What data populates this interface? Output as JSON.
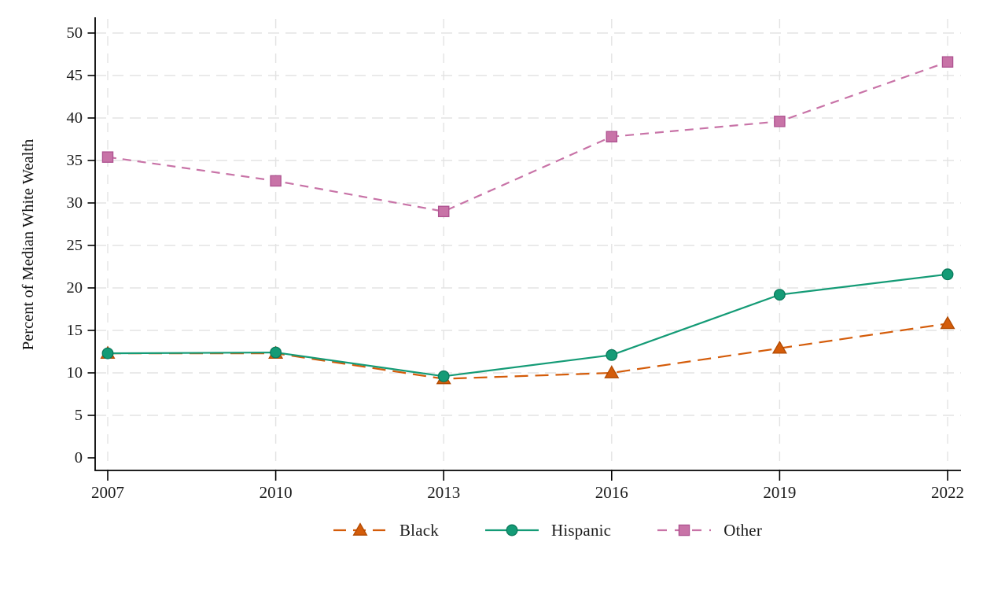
{
  "chart_data": {
    "type": "line",
    "title": "",
    "xlabel": "",
    "ylabel": "Percent of Median White Wealth",
    "x": [
      2007,
      2010,
      2013,
      2016,
      2019,
      2022
    ],
    "ylim": [
      0,
      50
    ],
    "yticks": [
      0,
      5,
      10,
      15,
      20,
      25,
      30,
      35,
      40,
      45,
      50
    ],
    "grid": "both-dashed",
    "legend_position": "bottom-center",
    "series": [
      {
        "name": "Black",
        "marker": "triangle",
        "line_style": "long-dash",
        "color": "#d45c0a",
        "marker_stroke": "#b14a02",
        "values": [
          12.3,
          12.3,
          9.3,
          10.0,
          12.9,
          15.8
        ]
      },
      {
        "name": "Hispanic",
        "marker": "circle",
        "line_style": "solid",
        "color": "#149b76",
        "marker_stroke": "#0b7a5c",
        "values": [
          12.3,
          12.4,
          9.6,
          12.1,
          19.2,
          21.6
        ]
      },
      {
        "name": "Other",
        "marker": "square",
        "line_style": "short-dash",
        "color": "#c873a7",
        "marker_stroke": "#ae5290",
        "values": [
          35.4,
          32.6,
          29.0,
          37.8,
          39.6,
          46.6
        ]
      }
    ],
    "style_colors": {
      "axis": "#000000",
      "grid": "#e3e3e3",
      "tick_text": "#1b1b1b"
    }
  }
}
